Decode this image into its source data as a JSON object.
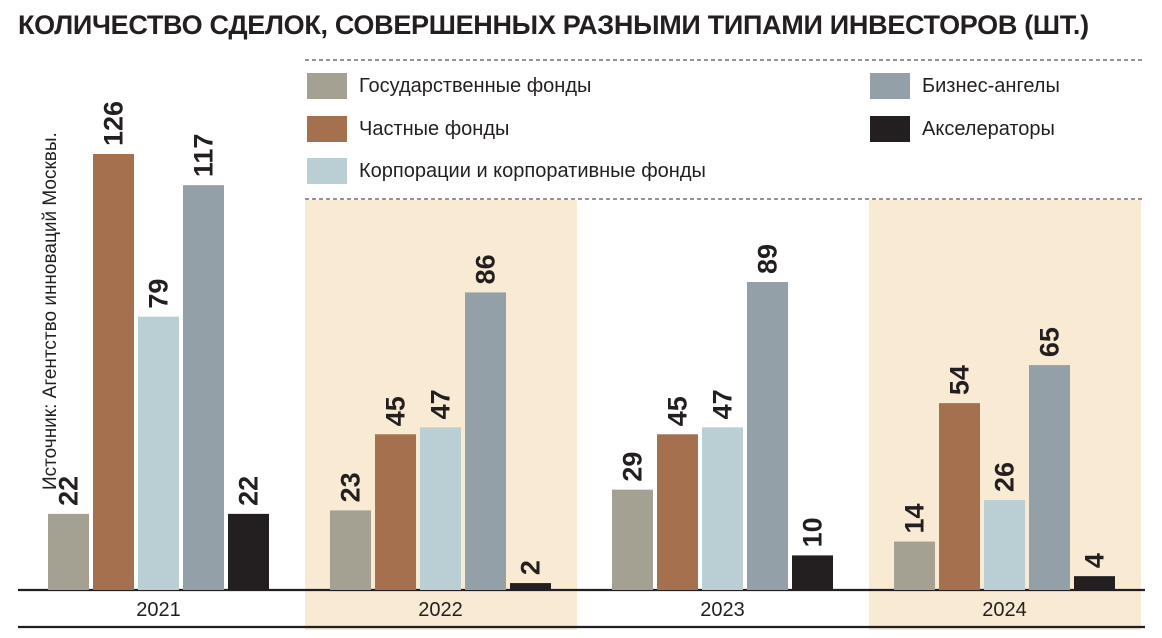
{
  "chart_data": {
    "type": "bar",
    "title": "КОЛИЧЕСТВО СДЕЛОК, СОВЕРШЕННЫХ РАЗНЫМИ ТИПАМИ ИНВЕСТОРОВ (ШТ.)",
    "source": "Источник: Агентство инноваций Москвы.",
    "categories": [
      "2021",
      "2022",
      "2023",
      "2024"
    ],
    "series": [
      {
        "name": "Государственные фонды",
        "color": "#a4a193",
        "values": [
          22,
          23,
          29,
          14
        ]
      },
      {
        "name": "Частные фонды",
        "color": "#a4704e",
        "values": [
          126,
          45,
          45,
          54
        ]
      },
      {
        "name": "Корпорации и корпоративные фонды",
        "color": "#bacfd3",
        "values": [
          79,
          47,
          47,
          26
        ]
      },
      {
        "name": "Бизнес-ангелы",
        "color": "#93a0a8",
        "values": [
          117,
          86,
          89,
          65
        ]
      },
      {
        "name": "Акселераторы",
        "color": "#231f20",
        "values": [
          22,
          2,
          10,
          4
        ]
      }
    ],
    "ylim": [
      0,
      126
    ],
    "legend_position": "top-right",
    "grid": false,
    "shaded_categories": [
      "2022",
      "2024"
    ],
    "shade_color": "#f8ead3"
  }
}
